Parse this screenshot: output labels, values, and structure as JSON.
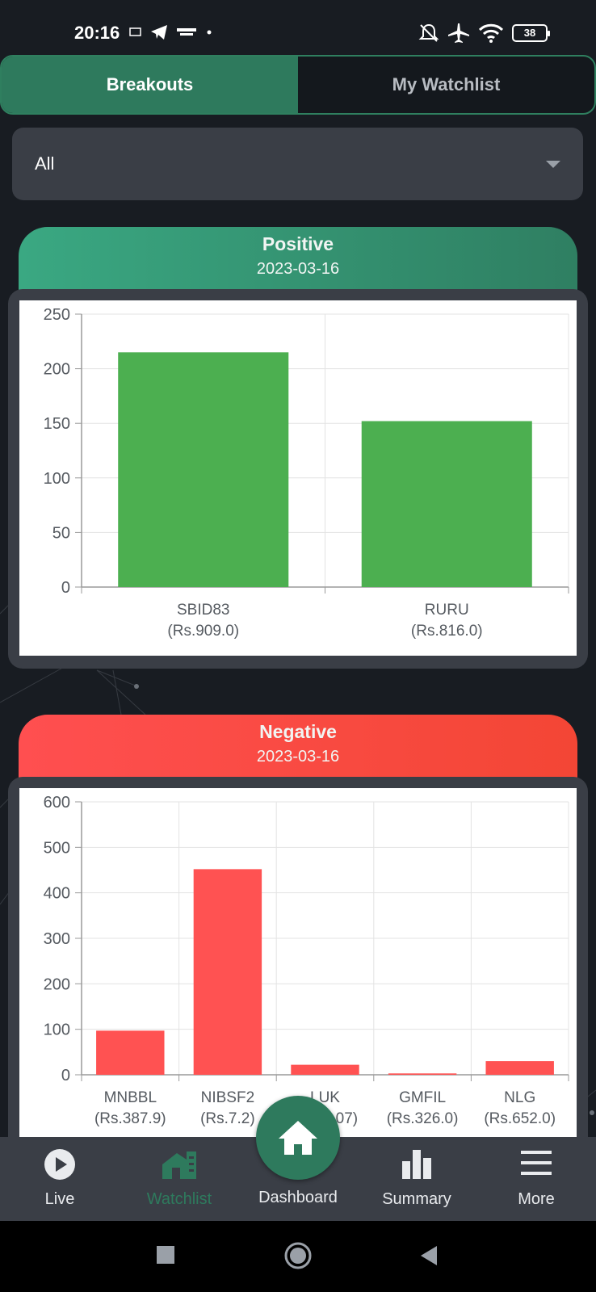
{
  "status_bar": {
    "time": "20:16",
    "battery": "38",
    "icons": [
      "screen-cast-icon",
      "telegram-icon",
      "hamro-share-icon",
      "dot-icon",
      "bell-off-icon",
      "airplane-icon",
      "wifi-icon",
      "battery-icon"
    ]
  },
  "tabs": [
    {
      "label": "Breakouts",
      "active": true
    },
    {
      "label": "My Watchlist",
      "active": false
    }
  ],
  "filter": {
    "value": "All"
  },
  "positive": {
    "title": "Positive",
    "date": "2023-03-16",
    "chart_data": {
      "type": "bar",
      "title": "Positive",
      "categories": [
        "SBID83",
        "RURU"
      ],
      "category_sublabels": [
        "(Rs.909.0)",
        "(Rs.816.0)"
      ],
      "values": [
        215,
        152
      ],
      "yticks": [
        0,
        50,
        100,
        150,
        200,
        250
      ],
      "ylim": [
        0,
        250
      ],
      "color": "#4caf50",
      "grid": true
    }
  },
  "negative": {
    "title": "Negative",
    "date": "2023-03-16",
    "chart_data": {
      "type": "bar",
      "title": "Negative",
      "categories": [
        "MNBBL",
        "NIBSF2",
        "LUK",
        "GMFIL",
        "NLG"
      ],
      "category_sublabels": [
        "(Rs.387.9)",
        "(Rs.7.2)",
        "(Rs.---07)",
        "(Rs.326.0)",
        "(Rs.652.0)"
      ],
      "values": [
        97,
        452,
        22,
        3,
        30
      ],
      "yticks": [
        0,
        100,
        200,
        300,
        400,
        500,
        600
      ],
      "ylim": [
        0,
        600
      ],
      "color": "#ff5252",
      "grid": true
    }
  },
  "fab": {
    "icon": "home-icon"
  },
  "bottom_nav": [
    {
      "label": "Live",
      "icon": "play-icon",
      "active": false
    },
    {
      "label": "Watchlist",
      "icon": "watchlist-icon",
      "active": true
    },
    {
      "label": "Dashboard",
      "icon": "home-icon",
      "active": false
    },
    {
      "label": "Summary",
      "icon": "bar-chart-icon",
      "active": false
    },
    {
      "label": "More",
      "icon": "menu-icon",
      "active": false
    }
  ],
  "colors": {
    "accent": "#2e7a5d",
    "positive": "#4caf50",
    "negative": "#ff5252",
    "background": "#181c22",
    "surface": "#3a3e46"
  }
}
